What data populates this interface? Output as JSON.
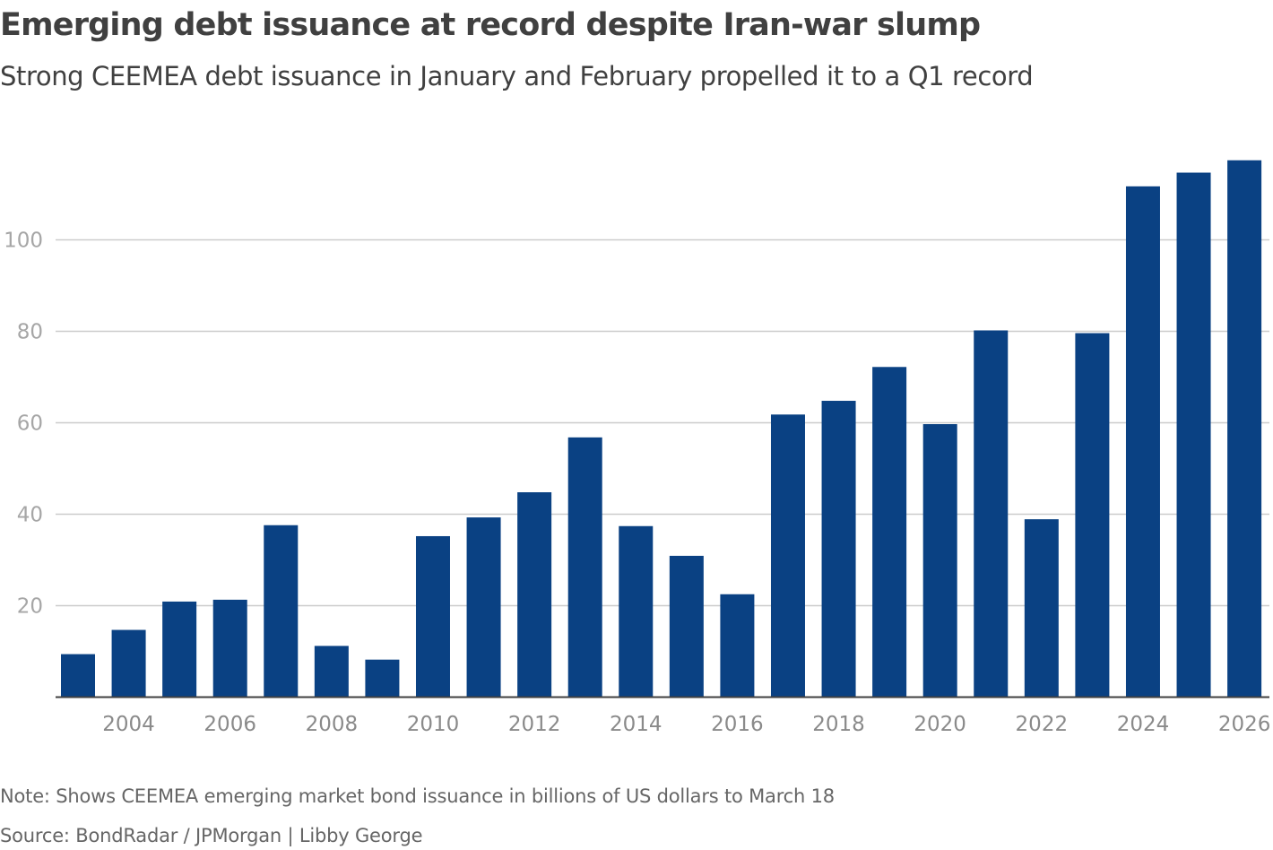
{
  "title": "Emerging debt issuance at record despite Iran-war slump",
  "subtitle": "Strong CEEMEA debt issuance in January and February propelled it to a Q1 record",
  "note": "Note: Shows CEEMEA emerging market bond issuance in billions of US dollars to March 18",
  "source": "Source: BondRadar / JPMorgan | Libby George",
  "chart_data": {
    "type": "bar",
    "title": "Emerging debt issuance at record despite Iran-war slump",
    "xlabel": "",
    "ylabel": "",
    "bar_color": "#0a4183",
    "grid": true,
    "ylim": [
      0,
      120
    ],
    "yticks": [
      20,
      40,
      60,
      80,
      100
    ],
    "xticks": [
      "2004",
      "2006",
      "2008",
      "2010",
      "2012",
      "2014",
      "2016",
      "2018",
      "2020",
      "2022",
      "2024",
      "2026"
    ],
    "categories": [
      "2003",
      "2004",
      "2005",
      "2006",
      "2007",
      "2008",
      "2009",
      "2010",
      "2011",
      "2012",
      "2013",
      "2014",
      "2015",
      "2016",
      "2017",
      "2018",
      "2019",
      "2020",
      "2021",
      "2022",
      "2023",
      "2024",
      "2025",
      "2026"
    ],
    "values": [
      9.4,
      14.7,
      20.9,
      21.3,
      37.6,
      11.2,
      8.2,
      35.2,
      39.3,
      44.8,
      56.8,
      37.4,
      30.9,
      22.5,
      61.8,
      64.8,
      72.2,
      59.7,
      80.2,
      38.9,
      79.6,
      111.7,
      114.7,
      117.4
    ]
  }
}
